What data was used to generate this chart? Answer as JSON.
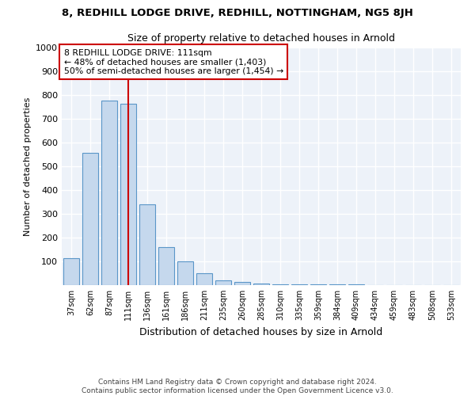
{
  "title1": "8, REDHILL LODGE DRIVE, REDHILL, NOTTINGHAM, NG5 8JH",
  "title2": "Size of property relative to detached houses in Arnold",
  "xlabel": "Distribution of detached houses by size in Arnold",
  "ylabel": "Number of detached properties",
  "bar_color": "#c5d8ed",
  "bar_edge_color": "#5a96c8",
  "categories": [
    "37sqm",
    "62sqm",
    "87sqm",
    "111sqm",
    "136sqm",
    "161sqm",
    "186sqm",
    "211sqm",
    "235sqm",
    "260sqm",
    "285sqm",
    "310sqm",
    "335sqm",
    "359sqm",
    "384sqm",
    "409sqm",
    "434sqm",
    "459sqm",
    "483sqm",
    "508sqm",
    "533sqm"
  ],
  "values": [
    115,
    558,
    778,
    765,
    340,
    160,
    100,
    50,
    20,
    15,
    8,
    5,
    4,
    3,
    2,
    2,
    1,
    1,
    1,
    1,
    1
  ],
  "vline_x_index": 3,
  "vline_color": "#cc0000",
  "annotation_line1": "8 REDHILL LODGE DRIVE: 111sqm",
  "annotation_line2": "← 48% of detached houses are smaller (1,403)",
  "annotation_line3": "50% of semi-detached houses are larger (1,454) →",
  "annotation_box_color": "white",
  "annotation_box_edge": "#cc0000",
  "ylim": [
    0,
    1000
  ],
  "yticks": [
    0,
    100,
    200,
    300,
    400,
    500,
    600,
    700,
    800,
    900,
    1000
  ],
  "footer1": "Contains HM Land Registry data © Crown copyright and database right 2024.",
  "footer2": "Contains public sector information licensed under the Open Government Licence v3.0.",
  "bg_color": "#edf2f9",
  "grid_color": "#ffffff",
  "bar_width": 0.85
}
